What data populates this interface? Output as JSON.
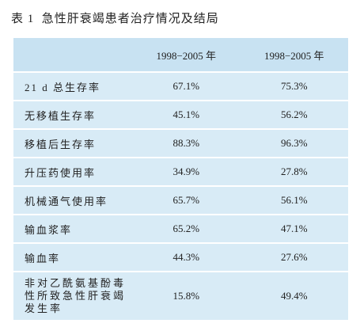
{
  "title": "表 1  急性肝衰竭患者治疗情况及结局",
  "table": {
    "header": [
      "1998−2005 年",
      "1998−2005 年"
    ],
    "rows": [
      [
        "21 d 总生存率",
        "67.1%",
        "75.3%"
      ],
      [
        "无移植生存率",
        "45.1%",
        "56.2%"
      ],
      [
        "移植后生存率",
        "88.3%",
        "96.3%"
      ],
      [
        "升压药使用率",
        "34.9%",
        "27.8%"
      ],
      [
        "机械通气使用率",
        "65.7%",
        "56.1%"
      ],
      [
        "输血浆率",
        "65.2%",
        "47.1%"
      ],
      [
        "输血率",
        "44.3%",
        "27.6%"
      ],
      [
        "非对乙酰氨基酚毒性所致急性肝衰竭发生率",
        "15.8%",
        "49.4%"
      ]
    ]
  }
}
